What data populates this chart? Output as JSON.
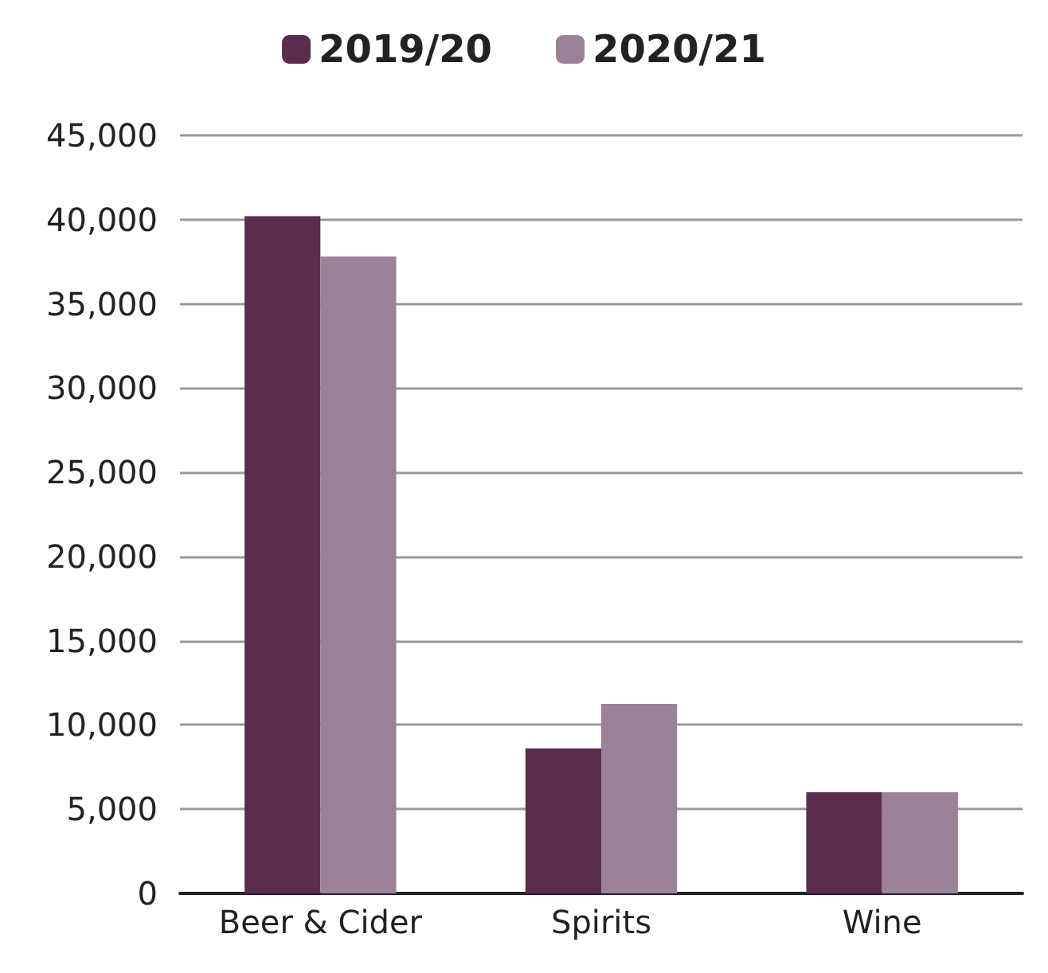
{
  "chart_data": {
    "type": "bar",
    "categories": [
      "Beer & Cider",
      "Spirits",
      "Wine"
    ],
    "series": [
      {
        "name": "2019/20",
        "color": "#5a2d4f",
        "values": [
          40200,
          8600,
          6000
        ]
      },
      {
        "name": "2020/21",
        "color": "#9b8297",
        "values": [
          37800,
          11250,
          6000
        ]
      }
    ],
    "ylim": [
      0,
      45000
    ],
    "yticks": [
      {
        "value": 0,
        "label": "0"
      },
      {
        "value": 5000,
        "label": "5,000"
      },
      {
        "value": 10000,
        "label": "10,000"
      },
      {
        "value": 15000,
        "label": "15,000"
      },
      {
        "value": 20000,
        "label": "20,000"
      },
      {
        "value": 25000,
        "label": "25,000"
      },
      {
        "value": 30000,
        "label": "30,000"
      },
      {
        "value": 35000,
        "label": "35,000"
      },
      {
        "value": 40000,
        "label": "40,000"
      },
      {
        "value": 45000,
        "label": "45,000"
      }
    ],
    "grid": "y",
    "legend": "top"
  }
}
